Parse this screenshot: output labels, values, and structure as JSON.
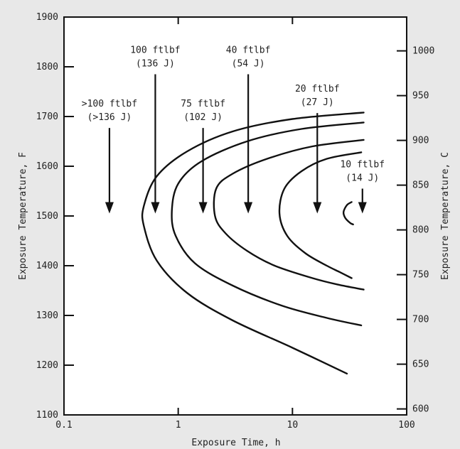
{
  "chart_data": {
    "type": "line",
    "xlabel": "Exposure Time, h",
    "ylabel": "Exposure Temperature, F",
    "y2label": "Exposure Temperature, C",
    "xscale": "log",
    "xlim": [
      0.1,
      100
    ],
    "ylim": [
      1100,
      1900
    ],
    "y2lim": [
      593.3,
      1037.8
    ],
    "x_ticks": [
      {
        "value": 0.1,
        "label": "0.1"
      },
      {
        "value": 1,
        "label": "1"
      },
      {
        "value": 10,
        "label": "10"
      },
      {
        "value": 100,
        "label": "100"
      }
    ],
    "y_ticks": [
      {
        "value": 1100,
        "label": "1100"
      },
      {
        "value": 1200,
        "label": "1200"
      },
      {
        "value": 1300,
        "label": "1300"
      },
      {
        "value": 1400,
        "label": "1400"
      },
      {
        "value": 1500,
        "label": "1500"
      },
      {
        "value": 1600,
        "label": "1600"
      },
      {
        "value": 1700,
        "label": "1700"
      },
      {
        "value": 1800,
        "label": "1800"
      },
      {
        "value": 1900,
        "label": "1900"
      }
    ],
    "y2_ticks": [
      {
        "value": 600,
        "label": "600"
      },
      {
        "value": 650,
        "label": "650"
      },
      {
        "value": 700,
        "label": "700"
      },
      {
        "value": 750,
        "label": "750"
      },
      {
        "value": 800,
        "label": "800"
      },
      {
        "value": 850,
        "label": "850"
      },
      {
        "value": 900,
        "label": "900"
      },
      {
        "value": 950,
        "label": "950"
      },
      {
        "value": 1000,
        "label": "1000"
      }
    ],
    "grid": false,
    "series": [
      {
        "points": [
          [
            42,
            1708
          ],
          [
            10,
            1695
          ],
          [
            3,
            1670
          ],
          [
            1.2,
            1630
          ],
          [
            0.65,
            1580
          ],
          [
            0.5,
            1520
          ],
          [
            0.5,
            1480
          ],
          [
            0.65,
            1410
          ],
          [
            1.2,
            1345
          ],
          [
            3,
            1290
          ],
          [
            10,
            1235
          ],
          [
            30,
            1183
          ]
        ]
      },
      {
        "points": [
          [
            42,
            1688
          ],
          [
            12,
            1675
          ],
          [
            4,
            1650
          ],
          [
            1.6,
            1610
          ],
          [
            1,
            1565
          ],
          [
            0.88,
            1510
          ],
          [
            0.95,
            1460
          ],
          [
            1.4,
            1405
          ],
          [
            3,
            1360
          ],
          [
            8,
            1320
          ],
          [
            20,
            1295
          ],
          [
            40,
            1280
          ]
        ]
      },
      {
        "points": [
          [
            42,
            1653
          ],
          [
            15,
            1640
          ],
          [
            6,
            1615
          ],
          [
            3,
            1585
          ],
          [
            2.15,
            1555
          ],
          [
            2.1,
            1500
          ],
          [
            2.6,
            1465
          ],
          [
            4,
            1430
          ],
          [
            7,
            1400
          ],
          [
            15,
            1375
          ],
          [
            25,
            1362
          ],
          [
            42,
            1352
          ]
        ]
      },
      {
        "points": [
          [
            40,
            1628
          ],
          [
            20,
            1615
          ],
          [
            12,
            1590
          ],
          [
            8.5,
            1555
          ],
          [
            7.7,
            1505
          ],
          [
            9,
            1460
          ],
          [
            13,
            1425
          ],
          [
            20,
            1400
          ],
          [
            26,
            1387
          ],
          [
            33,
            1375
          ]
        ]
      },
      {
        "points": [
          [
            33,
            1528
          ],
          [
            30,
            1522
          ],
          [
            28,
            1508
          ],
          [
            29,
            1496
          ],
          [
            32,
            1486
          ],
          [
            34,
            1483
          ]
        ]
      }
    ],
    "annotations": [
      {
        "lines": [
          ">100 ftlbf",
          "(>136 J)"
        ],
        "x": 0.25,
        "y_top": 1677,
        "y_tip": 1505
      },
      {
        "lines": [
          "100 ftlbf",
          "(136 J)"
        ],
        "x": 0.63,
        "y_top": 1785,
        "y_tip": 1505
      },
      {
        "lines": [
          "75 ftlbf",
          "(102 J)"
        ],
        "x": 1.65,
        "y_top": 1677,
        "y_tip": 1505
      },
      {
        "lines": [
          "40 ftlbf",
          "(54 J)"
        ],
        "x": 4.1,
        "y_top": 1785,
        "y_tip": 1505
      },
      {
        "lines": [
          "20 ftlbf",
          "(27 J)"
        ],
        "x": 16.5,
        "y_top": 1707,
        "y_tip": 1505
      },
      {
        "lines": [
          "10 ftlbf",
          "(14 J)"
        ],
        "x": 41,
        "y_top": 1555,
        "y_tip": 1505
      }
    ]
  }
}
